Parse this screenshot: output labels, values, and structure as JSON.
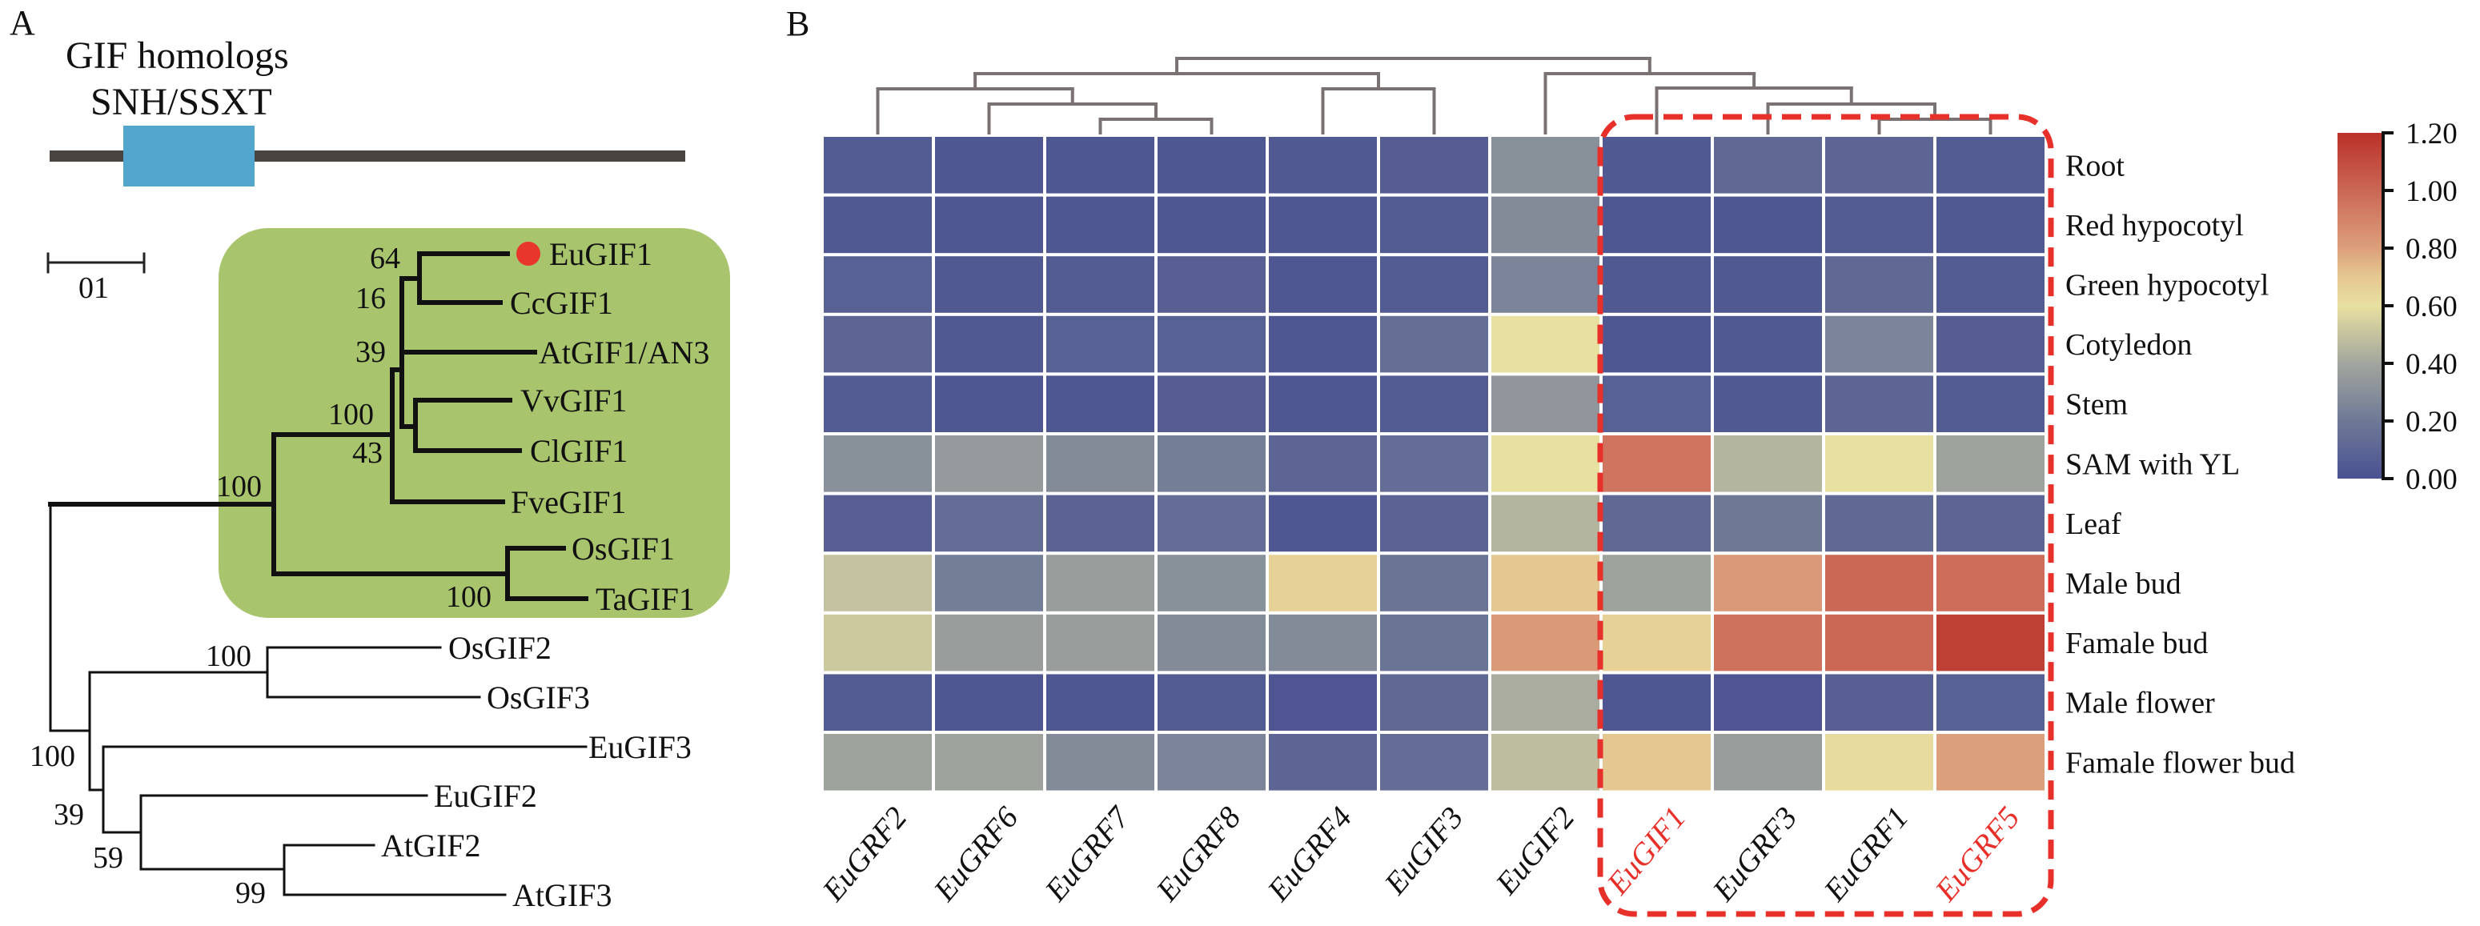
{
  "panel_a": {
    "letter": "A",
    "domain_title_line1": "GIF homologs",
    "domain_title_line2": "SNH/SSXT",
    "domain_color": "#52a5cc",
    "protein_bar_color": "#4a4440",
    "scale_bar_label": "01",
    "clade_highlight_color": "#a8c46c",
    "marker_color": "#e8362d",
    "marked_leaf": "EuGIF1",
    "tree": {
      "leaves": [
        "EuGIF1",
        "CcGIF1",
        "AtGIF1/AN3",
        "VvGIF1",
        "ClGIF1",
        "FveGIF1",
        "OsGIF1",
        "TaGIF1",
        "OsGIF2",
        "OsGIF3",
        "EuGIF3",
        "EuGIF2",
        "AtGIF2",
        "AtGIF3"
      ],
      "bootstrap": [
        "64",
        "16",
        "39",
        "100",
        "43",
        "100",
        "100",
        "100",
        "100",
        "39",
        "59",
        "99"
      ]
    }
  },
  "panel_b": {
    "letter": "B",
    "highlight_box_color": "#e8302a",
    "dendrogram_color": "#7a7272"
  },
  "chart_data": {
    "type": "heatmap",
    "title": "",
    "columns": [
      "EuGRF2",
      "EuGRF6",
      "EuGRF7",
      "EuGRF8",
      "EuGRF4",
      "EuGIF3",
      "EuGIF2",
      "EuGIF1",
      "EuGRF3",
      "EuGRF1",
      "EuGRF5"
    ],
    "highlighted_columns": [
      "EuGIF1",
      "EuGRF5"
    ],
    "highlighted_column_color": "#e8302a",
    "boxed_columns": [
      "EuGIF1",
      "EuGRF3",
      "EuGRF1",
      "EuGRF5"
    ],
    "rows": [
      "Root",
      "Red hypocotyl",
      "Green hypocotyl",
      "Cotyledon",
      "Stem",
      "SAM with YL",
      "Leaf",
      "Male bud",
      "Famale bud",
      "Male flower",
      "Famale flower bud"
    ],
    "values": [
      [
        0.05,
        0.03,
        0.03,
        0.03,
        0.04,
        0.06,
        0.3,
        0.04,
        0.12,
        0.1,
        0.05
      ],
      [
        0.04,
        0.03,
        0.03,
        0.03,
        0.03,
        0.05,
        0.28,
        0.03,
        0.03,
        0.05,
        0.04
      ],
      [
        0.08,
        0.04,
        0.05,
        0.07,
        0.03,
        0.05,
        0.25,
        0.04,
        0.04,
        0.12,
        0.05
      ],
      [
        0.1,
        0.04,
        0.08,
        0.08,
        0.03,
        0.15,
        0.6,
        0.03,
        0.04,
        0.25,
        0.06
      ],
      [
        0.05,
        0.03,
        0.03,
        0.06,
        0.03,
        0.05,
        0.33,
        0.08,
        0.04,
        0.1,
        0.05
      ],
      [
        0.3,
        0.35,
        0.28,
        0.22,
        0.1,
        0.14,
        0.6,
        0.95,
        0.45,
        0.6,
        0.38
      ],
      [
        0.07,
        0.14,
        0.09,
        0.14,
        0.03,
        0.09,
        0.45,
        0.12,
        0.2,
        0.12,
        0.1
      ],
      [
        0.5,
        0.22,
        0.36,
        0.3,
        0.66,
        0.18,
        0.7,
        0.38,
        0.82,
        1.0,
        0.98
      ],
      [
        0.52,
        0.36,
        0.36,
        0.28,
        0.28,
        0.18,
        0.82,
        0.66,
        0.96,
        1.0,
        1.15
      ],
      [
        0.05,
        0.03,
        0.03,
        0.05,
        0.02,
        0.12,
        0.42,
        0.03,
        0.02,
        0.07,
        0.08
      ],
      [
        0.38,
        0.38,
        0.28,
        0.25,
        0.1,
        0.14,
        0.48,
        0.7,
        0.36,
        0.62,
        0.8
      ]
    ],
    "colorbar": {
      "range": [
        0,
        1.2
      ],
      "ticks": [
        "0.00",
        "0.20",
        "0.40",
        "0.60",
        "0.80",
        "1.00",
        "1.20"
      ],
      "colorscale": [
        [
          0.0,
          "#4a5192"
        ],
        [
          0.2,
          "#6e7996"
        ],
        [
          0.4,
          "#a2a69e"
        ],
        [
          0.6,
          "#e8e0a0"
        ],
        [
          0.7,
          "#e5c891"
        ],
        [
          0.8,
          "#dc9f7b"
        ],
        [
          1.0,
          "#cb6755"
        ],
        [
          1.2,
          "#ba3129"
        ]
      ]
    },
    "column_dendrogram": true,
    "grid": false
  }
}
